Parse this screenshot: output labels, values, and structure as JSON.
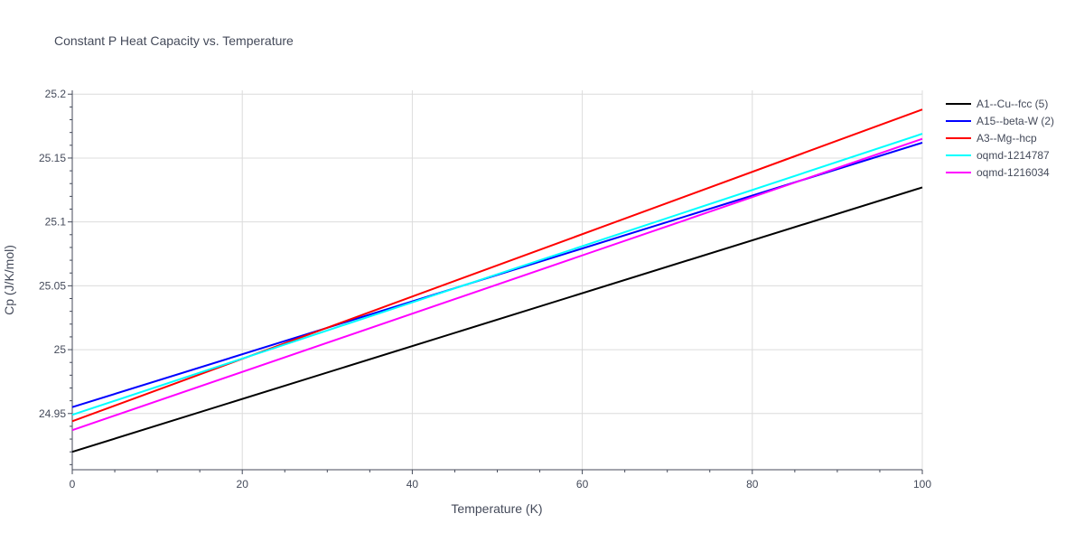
{
  "chart_data": {
    "type": "line",
    "title": "Constant P Heat Capacity vs. Temperature",
    "xlabel": "Temperature (K)",
    "ylabel": "Cp (J/K/mol)",
    "xlim": [
      0,
      100
    ],
    "ylim": [
      24.906,
      25.203
    ],
    "x_ticks": [
      0,
      20,
      40,
      60,
      80,
      100
    ],
    "x_tick_labels": [
      "0",
      "20",
      "40",
      "60",
      "80",
      "100"
    ],
    "y_ticks": [
      24.95,
      25,
      25.05,
      25.1,
      25.15,
      25.2
    ],
    "y_tick_labels": [
      "24.95",
      "25",
      "25.05",
      "25.1",
      "25.15",
      "25.2"
    ],
    "grid": true,
    "legend_position": "top-right outside",
    "series": [
      {
        "name": "A1--Cu--fcc (5)",
        "color": "#000000",
        "x": [
          0,
          100
        ],
        "y": [
          24.92,
          25.127
        ]
      },
      {
        "name": "A15--beta-W (2)",
        "color": "#0000ff",
        "x": [
          0,
          100
        ],
        "y": [
          24.955,
          25.162
        ]
      },
      {
        "name": "A3--Mg--hcp",
        "color": "#ff0000",
        "x": [
          0,
          100
        ],
        "y": [
          24.944,
          25.188
        ]
      },
      {
        "name": "oqmd-1214787",
        "color": "#00ffff",
        "x": [
          0,
          100
        ],
        "y": [
          24.949,
          25.169
        ]
      },
      {
        "name": "oqmd-1216034",
        "color": "#ff00ff",
        "x": [
          0,
          100
        ],
        "y": [
          24.937,
          25.165
        ]
      }
    ]
  }
}
